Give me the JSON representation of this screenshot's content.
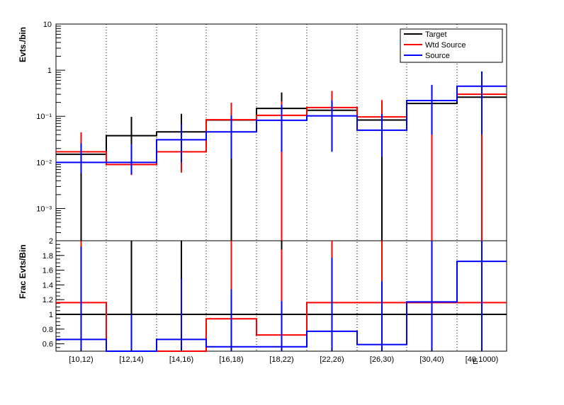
{
  "chart_data": [
    {
      "type": "line",
      "subtype": "step-histogram-with-error-bars",
      "ylabel": "Evts./bin",
      "yscale": "log",
      "ylim": [
        0.0002,
        10
      ],
      "categories": [
        "[10,12)",
        "[12,14)",
        "[14,16)",
        "[16,18)",
        "[18,22)",
        "[22,26)",
        "[26,30)",
        "[30,40)",
        "[40,1000)"
      ],
      "y_tick_labels": [
        "10⁻³",
        "10⁻²",
        "10⁻¹",
        "1",
        "10"
      ],
      "legend": [
        "Target",
        "Wtd Source",
        "Source"
      ],
      "legend_position": "top-right",
      "series": [
        {
          "name": "Target",
          "color": "#000000",
          "values": [
            0.015,
            0.038,
            0.046,
            0.083,
            0.148,
            0.135,
            0.083,
            0.19,
            0.26
          ],
          "err_low": [
            0.015,
            0.014,
            0.012,
            0.083,
            0.078,
            0.07,
            0.083,
            0.19,
            0.21
          ],
          "err_high": [
            0.015,
            0.059,
            0.067,
            0.083,
            0.18,
            0.17,
            0.083,
            0.16,
            0.31
          ]
        },
        {
          "name": "Wtd Source",
          "color": "#ff0000",
          "values": [
            0.017,
            0.009,
            0.017,
            0.084,
            0.105,
            0.155,
            0.097,
            0.22,
            0.3
          ],
          "err_low": [
            0.0082,
            0.0037,
            0.011,
            0.062,
            0.105,
            0.12,
            0.072,
            0.22,
            0.3
          ],
          "err_high": [
            0.028,
            0.009,
            0.017,
            0.113,
            0.105,
            0.2,
            0.128,
            0.22,
            0.3
          ]
        },
        {
          "name": "Source",
          "color": "#0000ff",
          "values": [
            0.01,
            0.01,
            0.031,
            0.046,
            0.082,
            0.102,
            0.05,
            0.22,
            0.45
          ],
          "err_low": [
            0.0042,
            0.0045,
            0.021,
            0.034,
            0.065,
            0.085,
            0.037,
            0.18,
            0.41
          ],
          "err_high": [
            0.016,
            0.015,
            0.04,
            0.058,
            0.098,
            0.12,
            0.063,
            0.26,
            0.49
          ]
        }
      ]
    },
    {
      "type": "line",
      "subtype": "step-ratio-with-error-bars",
      "ylabel": "Frac Evts/Bin",
      "ylim": [
        0.5,
        2
      ],
      "y_ticks": [
        0.6,
        0.8,
        1,
        1.2,
        1.4,
        1.6,
        1.8,
        2
      ],
      "y_tick_labels": [
        "0.6",
        "0.8",
        "1",
        "1.2",
        "1.4",
        "1.6",
        "1.8",
        "2"
      ],
      "reference_line": 1,
      "categories": [
        "[10,12)",
        "[12,14)",
        "[14,16)",
        "[16,18)",
        "[18,22)",
        "[22,26)",
        "[26,30)",
        "[30,40)",
        "[40,1000)"
      ],
      "x_label_partial": "E",
      "series": [
        {
          "name": "Target",
          "color": "#000000",
          "values": [
            1,
            1,
            1,
            1,
            1,
            1,
            1,
            1,
            1
          ],
          "err_low": [
            1,
            1,
            1,
            1,
            0.67,
            1,
            1,
            0.71,
            0.75
          ],
          "err_high": [
            1,
            1.64,
            1.58,
            1,
            1.33,
            1,
            1,
            1.29,
            1.25
          ]
        },
        {
          "name": "Wtd Source",
          "color": "#ff0000",
          "values": [
            1.16,
            0.5,
            0.5,
            0.94,
            0.72,
            1.16,
            1.16,
            1.16,
            1.16
          ],
          "err_low": [
            0.5,
            0.5,
            0.5,
            0.5,
            0.5,
            1,
            0.5,
            1.16,
            0.93
          ],
          "err_high": [
            2,
            0.5,
            0.5,
            1.36,
            1.16,
            1.53,
            1.63,
            1.16,
            1.38
          ]
        },
        {
          "name": "Source",
          "color": "#0000ff",
          "values": [
            0.66,
            0.5,
            0.66,
            0.56,
            0.56,
            0.77,
            0.59,
            1.17,
            1.72
          ],
          "err_low": [
            0.5,
            0.5,
            0.5,
            0.5,
            0.5,
            0.5,
            0.5,
            0.9,
            1.4
          ],
          "err_high": [
            1.26,
            0.5,
            0.83,
            0.78,
            0.62,
            1,
            0.86,
            1.43,
            2
          ]
        }
      ]
    }
  ]
}
